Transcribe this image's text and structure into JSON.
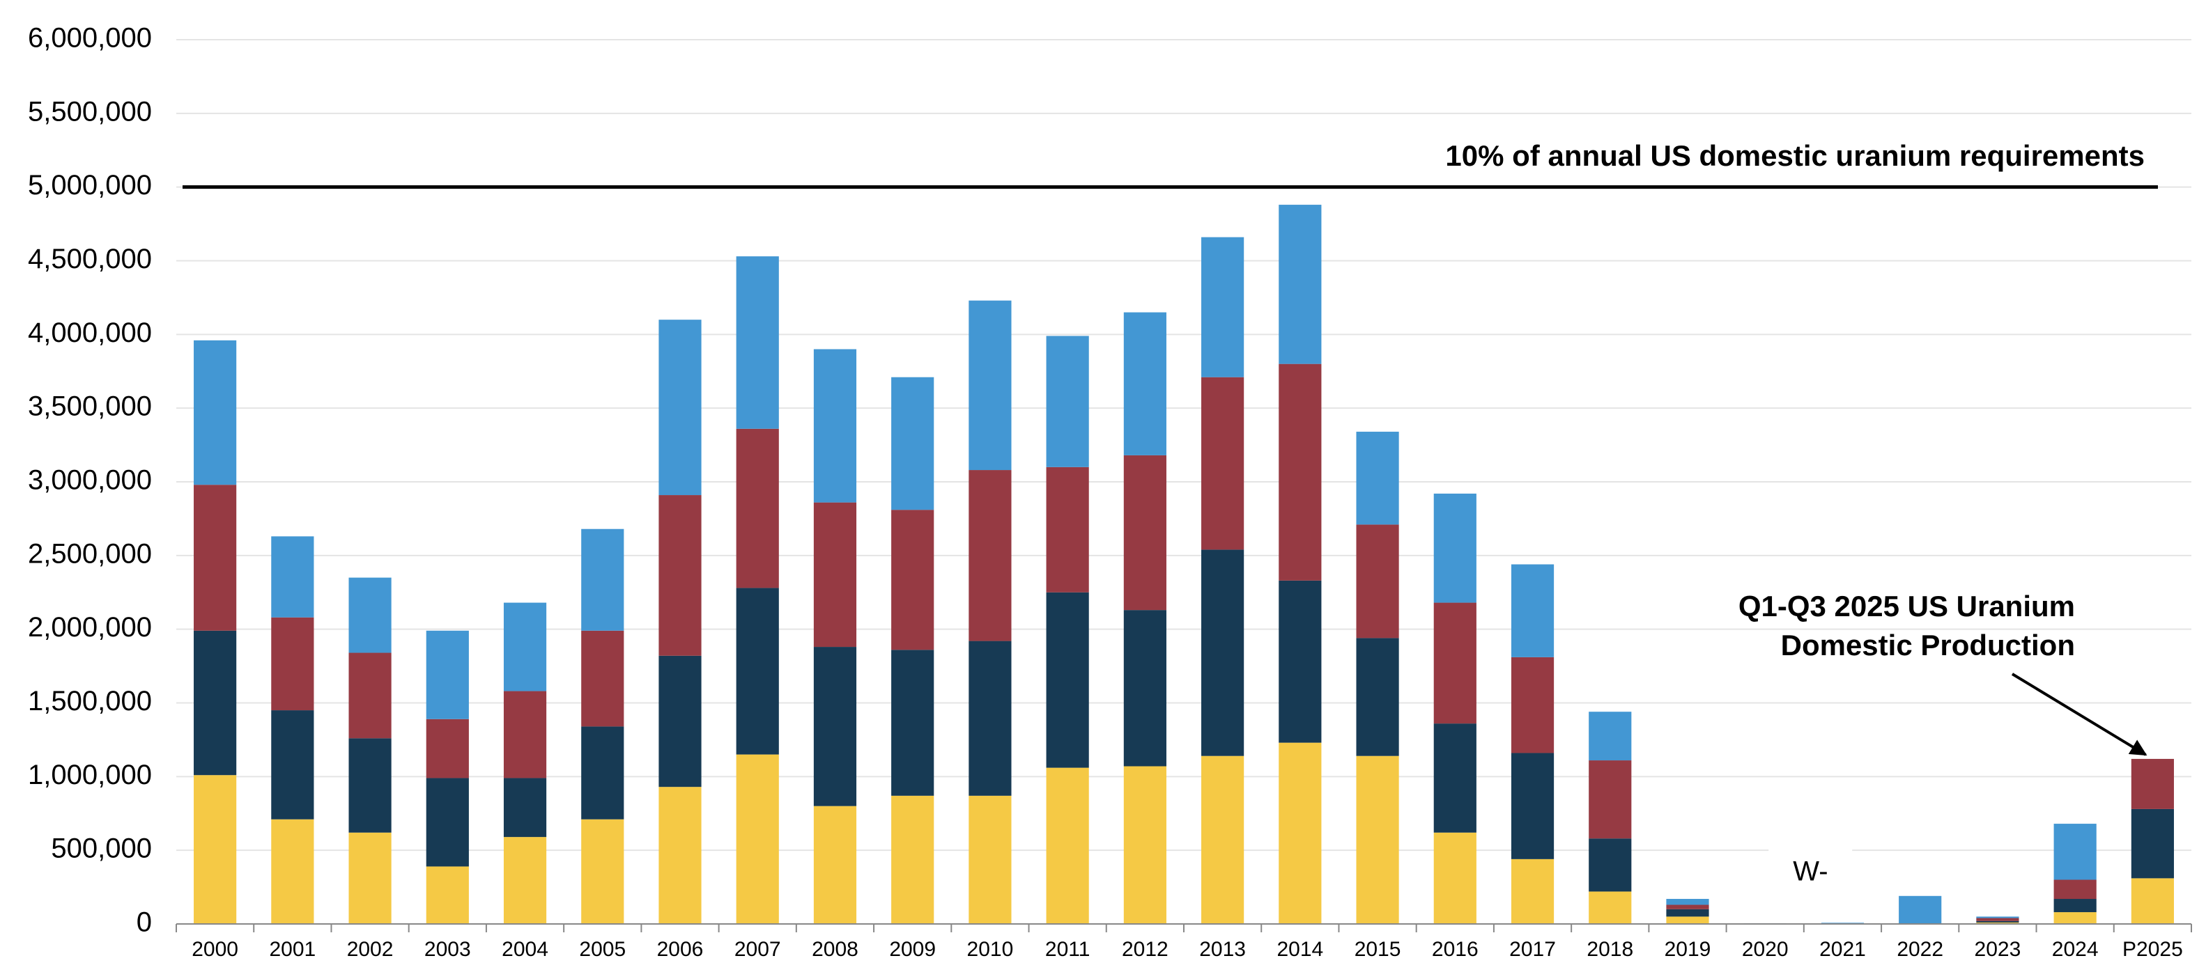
{
  "chart_data": {
    "type": "stacked-bar",
    "categories": [
      "2000",
      "2001",
      "2002",
      "2003",
      "2004",
      "2005",
      "2006",
      "2007",
      "2008",
      "2009",
      "2010",
      "2011",
      "2012",
      "2013",
      "2014",
      "2015",
      "2016",
      "2017",
      "2018",
      "2019",
      "2020",
      "2021",
      "2022",
      "2023",
      "2024",
      "P2025"
    ],
    "series": [
      {
        "color": "#f5c945",
        "values": [
          1010000,
          710000,
          620000,
          390000,
          590000,
          710000,
          930000,
          1150000,
          800000,
          870000,
          870000,
          1060000,
          1070000,
          1140000,
          1230000,
          1140000,
          620000,
          440000,
          220000,
          50000,
          0,
          0,
          0,
          10000,
          80000,
          310000
        ]
      },
      {
        "color": "#173a54",
        "values": [
          980000,
          740000,
          640000,
          600000,
          400000,
          630000,
          890000,
          1130000,
          1080000,
          990000,
          1050000,
          1190000,
          1060000,
          1400000,
          1100000,
          800000,
          740000,
          720000,
          360000,
          50000,
          0,
          0,
          0,
          10000,
          90000,
          470000
        ]
      },
      {
        "color": "#963a43",
        "values": [
          990000,
          630000,
          580000,
          400000,
          590000,
          650000,
          1090000,
          1080000,
          980000,
          950000,
          1160000,
          850000,
          1050000,
          1170000,
          1470000,
          770000,
          820000,
          650000,
          530000,
          30000,
          0,
          0,
          0,
          20000,
          130000,
          340000
        ]
      },
      {
        "color": "#4397d3",
        "values": [
          980000,
          550000,
          510000,
          600000,
          600000,
          690000,
          1190000,
          1170000,
          1040000,
          900000,
          1150000,
          890000,
          970000,
          950000,
          1080000,
          630000,
          740000,
          630000,
          330000,
          40000,
          5000,
          8000,
          190000,
          10000,
          380000,
          0
        ]
      }
    ],
    "ylim": [
      0,
      6000000
    ],
    "yticks": [
      0,
      {
        "value": 500000,
        "label": "500,000"
      },
      {
        "value": 1000000,
        "label": "1,000,000"
      },
      {
        "value": 1500000,
        "label": "1,500,000"
      },
      {
        "value": 2000000,
        "label": "2,000,000"
      },
      {
        "value": 2500000,
        "label": "2,500,000"
      },
      {
        "value": 3000000,
        "label": "3,000,000"
      },
      {
        "value": 3500000,
        "label": "3,500,000"
      },
      {
        "value": 4000000,
        "label": "4,000,000"
      },
      {
        "value": 4500000,
        "label": "4,500,000"
      },
      {
        "value": 5000000,
        "label": "5,000,000"
      },
      {
        "value": 5500000,
        "label": "5,500,000"
      },
      {
        "value": 6000000,
        "label": "6,000,000"
      }
    ],
    "grid": true,
    "ref_line": {
      "value": 5000000,
      "label": "10% of annual US domestic uranium requirements"
    },
    "annotation": [
      "Q1-Q3 2025 US Uranium",
      "Domestic Production"
    ],
    "na_label": "W-"
  }
}
